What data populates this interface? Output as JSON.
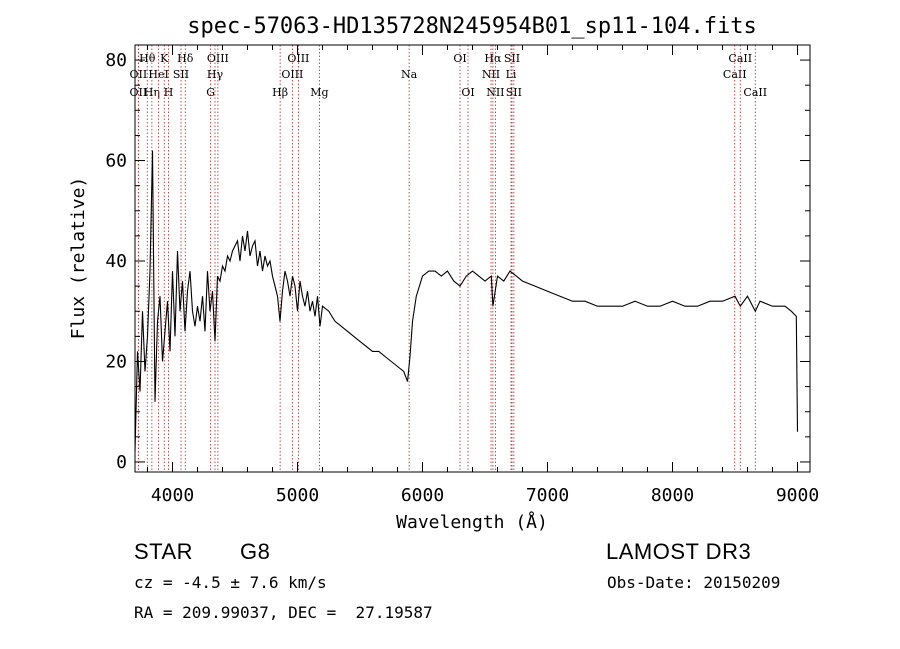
{
  "chart_data": {
    "type": "line",
    "title": "spec-57063-HD135728N245954B01_sp11-104.fits",
    "xlabel": "Wavelength (Å)",
    "ylabel": "Flux (relative)",
    "xlim": [
      3700,
      9100
    ],
    "ylim": [
      -2,
      83
    ],
    "x_ticks": [
      4000,
      5000,
      6000,
      7000,
      8000,
      9000
    ],
    "y_ticks": [
      0,
      20,
      40,
      60,
      80
    ],
    "grid": false,
    "series": [
      {
        "name": "spectrum",
        "x": [
          3700,
          3720,
          3740,
          3760,
          3780,
          3800,
          3820,
          3840,
          3860,
          3880,
          3900,
          3920,
          3940,
          3960,
          3980,
          4000,
          4020,
          4040,
          4060,
          4080,
          4100,
          4120,
          4140,
          4160,
          4180,
          4200,
          4220,
          4240,
          4260,
          4280,
          4300,
          4320,
          4340,
          4360,
          4380,
          4400,
          4420,
          4440,
          4460,
          4480,
          4500,
          4520,
          4540,
          4560,
          4580,
          4600,
          4620,
          4640,
          4660,
          4680,
          4700,
          4720,
          4740,
          4760,
          4780,
          4800,
          4820,
          4840,
          4860,
          4880,
          4900,
          4920,
          4940,
          4960,
          4980,
          5000,
          5020,
          5040,
          5060,
          5080,
          5100,
          5120,
          5140,
          5160,
          5180,
          5200,
          5250,
          5300,
          5350,
          5400,
          5450,
          5500,
          5550,
          5600,
          5650,
          5700,
          5750,
          5800,
          5850,
          5880,
          5900,
          5920,
          5950,
          6000,
          6050,
          6100,
          6150,
          6200,
          6250,
          6300,
          6350,
          6400,
          6450,
          6500,
          6550,
          6563,
          6600,
          6650,
          6700,
          6750,
          6800,
          6900,
          7000,
          7100,
          7200,
          7300,
          7400,
          7500,
          7600,
          7700,
          7800,
          7900,
          8000,
          8100,
          8200,
          8300,
          8400,
          8500,
          8542,
          8600,
          8662,
          8700,
          8800,
          8900,
          8950,
          8990,
          9000
        ],
        "y": [
          2,
          22,
          14,
          30,
          18,
          25,
          38,
          62,
          12,
          28,
          33,
          20,
          26,
          32,
          22,
          38,
          25,
          42,
          30,
          36,
          26,
          34,
          38,
          30,
          27,
          31,
          28,
          33,
          26,
          38,
          30,
          34,
          24,
          37,
          36,
          39,
          38,
          41,
          40,
          42,
          43,
          44,
          40,
          45,
          42,
          46,
          41,
          43,
          44,
          39,
          42,
          38,
          41,
          39,
          40,
          37,
          35,
          33,
          28,
          34,
          38,
          36,
          33,
          37,
          35,
          30,
          36,
          33,
          31,
          34,
          30,
          32,
          29,
          33,
          27,
          31,
          30,
          28,
          27,
          26,
          25,
          24,
          23,
          22,
          22,
          21,
          20,
          19,
          18,
          16,
          21,
          28,
          33,
          37,
          38,
          38,
          37,
          38,
          36,
          35,
          37,
          38,
          37,
          36,
          37,
          31,
          37,
          36,
          38,
          37,
          36,
          35,
          34,
          33,
          32,
          32,
          31,
          31,
          31,
          32,
          31,
          31,
          32,
          31,
          31,
          32,
          32,
          33,
          31,
          33,
          30,
          32,
          31,
          31,
          30,
          29,
          6
        ]
      }
    ],
    "line_marks": [
      {
        "id": "oii-3727",
        "x": 3727,
        "label": "OII",
        "row": 2
      },
      {
        "id": "h-theta",
        "x": 3798,
        "label": "Hθ",
        "row": 1
      },
      {
        "id": "oii-top",
        "x": 3727,
        "label": "OII",
        "row": 3
      },
      {
        "id": "h-eta",
        "x": 3835,
        "label": "Hη",
        "row": 3
      },
      {
        "id": "hei",
        "x": 3889,
        "label": "HeI",
        "row": 2
      },
      {
        "id": "k",
        "x": 3934,
        "label": "K",
        "row": 1
      },
      {
        "id": "h",
        "x": 3968,
        "label": "H",
        "row": 3
      },
      {
        "id": "sii-4068",
        "x": 4068,
        "label": "SII",
        "row": 2
      },
      {
        "id": "h-delta",
        "x": 4102,
        "label": "Hδ",
        "row": 1
      },
      {
        "id": "g",
        "x": 4305,
        "label": "G",
        "row": 3
      },
      {
        "id": "h-gamma",
        "x": 4340,
        "label": "Hγ",
        "row": 2
      },
      {
        "id": "oiii-4363",
        "x": 4363,
        "label": "OIII",
        "row": 1
      },
      {
        "id": "h-beta",
        "x": 4861,
        "label": "Hβ",
        "row": 3
      },
      {
        "id": "oiii-4959",
        "x": 4959,
        "label": "OIII",
        "row": 2
      },
      {
        "id": "oiii-5007",
        "x": 5007,
        "label": "OIII",
        "row": 1
      },
      {
        "id": "mg",
        "x": 5175,
        "label": "Mg",
        "row": 3
      },
      {
        "id": "na",
        "x": 5893,
        "label": "Na",
        "row": 2
      },
      {
        "id": "oi-6300",
        "x": 6300,
        "label": "OI",
        "row": 1
      },
      {
        "id": "oi-6364",
        "x": 6364,
        "label": "OI",
        "row": 3
      },
      {
        "id": "nii-6548",
        "x": 6548,
        "label": "NII",
        "row": 2
      },
      {
        "id": "h-alpha",
        "x": 6563,
        "label": "Hα",
        "row": 1
      },
      {
        "id": "nii-6583",
        "x": 6583,
        "label": "NII",
        "row": 3
      },
      {
        "id": "li",
        "x": 6708,
        "label": "Li",
        "row": 2
      },
      {
        "id": "sii-6716",
        "x": 6716,
        "label": "SII",
        "row": 1
      },
      {
        "id": "sii-6731",
        "x": 6731,
        "label": "SII",
        "row": 3
      },
      {
        "id": "caii-8498",
        "x": 8498,
        "label": "CaII",
        "row": 2
      },
      {
        "id": "caii-8542",
        "x": 8542,
        "label": "CaII",
        "row": 1
      },
      {
        "id": "caii-8662",
        "x": 8662,
        "label": "CaII",
        "row": 3
      }
    ]
  },
  "info": {
    "class_label": "STAR",
    "subclass": "G8",
    "survey": "LAMOST DR3",
    "cz": "cz = -4.5 ± 7.6 km/s",
    "obs_date": "Obs-Date: 20150209",
    "coords": "RA = 209.99037, DEC =  27.19587"
  }
}
